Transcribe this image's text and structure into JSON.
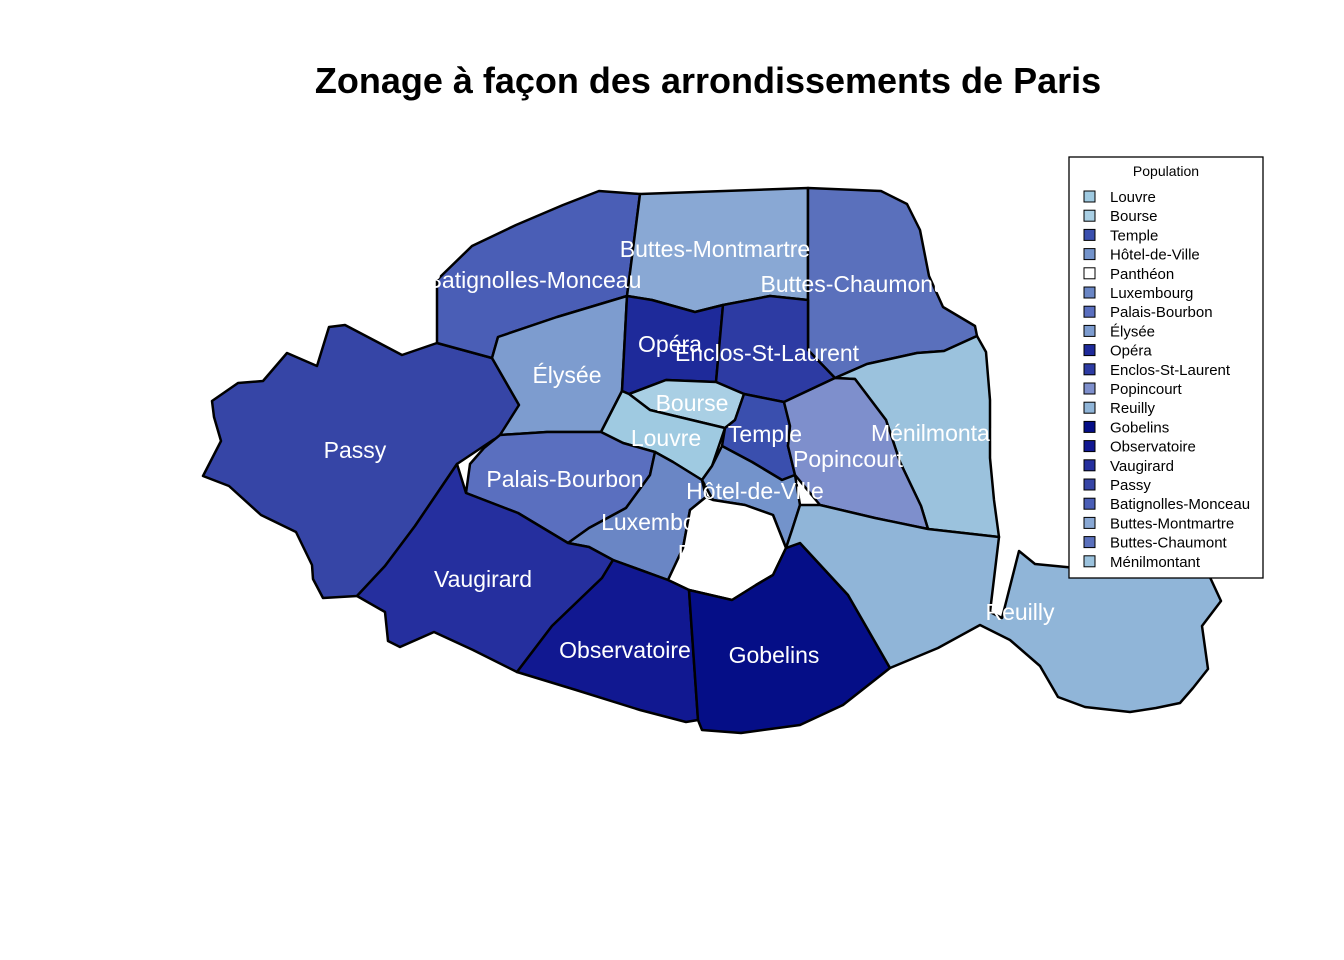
{
  "title": "Zonage à façon des arrondissements de Paris",
  "legend": {
    "title": "Population",
    "entries": [
      {
        "name": "Louvre",
        "color": "#9fcae1"
      },
      {
        "name": "Bourse",
        "color": "#a9cfe4"
      },
      {
        "name": "Temple",
        "color": "#3a4fae"
      },
      {
        "name": "Hôtel-de-Ville",
        "color": "#7393cb"
      },
      {
        "name": "Panthéon",
        "color": "#ffffff"
      },
      {
        "name": "Luxembourg",
        "color": "#6a86c5"
      },
      {
        "name": "Palais-Bourbon",
        "color": "#5a6fbf"
      },
      {
        "name": "Élysée",
        "color": "#7d9ccf"
      },
      {
        "name": "Opéra",
        "color": "#1e2a9a"
      },
      {
        "name": "Enclos-St-Laurent",
        "color": "#2d3ba3"
      },
      {
        "name": "Popincourt",
        "color": "#7e8fcc"
      },
      {
        "name": "Reuilly",
        "color": "#90b5d8"
      },
      {
        "name": "Gobelins",
        "color": "#050e87"
      },
      {
        "name": "Observatoire",
        "color": "#111891"
      },
      {
        "name": "Vaugirard",
        "color": "#252f9e"
      },
      {
        "name": "Passy",
        "color": "#3645a6"
      },
      {
        "name": "Batignolles-Monceau",
        "color": "#4a5eb6"
      },
      {
        "name": "Buttes-Montmartre",
        "color": "#89a8d4"
      },
      {
        "name": "Buttes-Chaumont",
        "color": "#5a70bc"
      },
      {
        "name": "Ménilmontant",
        "color": "#9bc2dd"
      }
    ]
  },
  "labels": {
    "passy": "Passy",
    "batignolles": "Batignolles-Monceau",
    "buttes_montmartre": "Buttes-Montmartre",
    "buttes_chaumont": "Buttes-Chaumont",
    "elysee": "Élysée",
    "opera": "Opéra",
    "enclos": "Enclos-St-Laurent",
    "bourse": "Bourse",
    "louvre": "Louvre",
    "temple": "Temple",
    "menilmontant": "Ménilmontant",
    "popincourt": "Popincourt",
    "palais_bourbon": "Palais-Bourbon",
    "hotel_de_ville": "Hôtel-de-Ville",
    "luxembourg": "Luxembourg",
    "pantheon": "Panthéon",
    "vaugirard": "Vaugirard",
    "observatoire": "Observatoire",
    "gobelins": "Gobelins",
    "reuilly": "Reuilly"
  }
}
